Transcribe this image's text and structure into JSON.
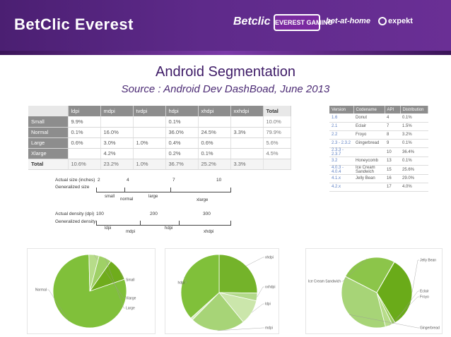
{
  "header": {
    "brand": "BetClic Everest",
    "logos": [
      "Betclic",
      "EVEREST GAMING",
      "bet-at-home",
      "expekt"
    ]
  },
  "title": "Android Segmentation",
  "subtitle": "Source : Android Dev DashBoad, June 2013",
  "density_table": {
    "columns": [
      "ldpi",
      "mdpi",
      "tvdpi",
      "hdpi",
      "xhdpi",
      "xxhdpi",
      "Total"
    ],
    "rows": [
      {
        "label": "Small",
        "cells": [
          "9.9%",
          "",
          "",
          "0.1%",
          "",
          "",
          "10.0%"
        ]
      },
      {
        "label": "Normal",
        "cells": [
          "0.1%",
          "16.0%",
          "",
          "36.0%",
          "24.5%",
          "3.3%",
          "79.9%"
        ]
      },
      {
        "label": "Large",
        "cells": [
          "0.6%",
          "3.0%",
          "1.0%",
          "0.4%",
          "0.6%",
          "",
          "5.6%"
        ]
      },
      {
        "label": "Xlarge",
        "cells": [
          "",
          "4.2%",
          "",
          "0.2%",
          "0.1%",
          "",
          "4.5%"
        ]
      }
    ],
    "total": {
      "label": "Total",
      "cells": [
        "10.6%",
        "23.2%",
        "1.0%",
        "36.7%",
        "25.2%",
        "3.3%",
        ""
      ]
    }
  },
  "version_table": {
    "columns": [
      "Version",
      "Codename",
      "API",
      "Distribution"
    ],
    "rows": [
      {
        "version": "1.6",
        "codename": "Donut",
        "api": "4",
        "dist": "0.1%"
      },
      {
        "version": "2.1",
        "codename": "Eclair",
        "api": "7",
        "dist": "1.5%"
      },
      {
        "version": "2.2",
        "codename": "Froyo",
        "api": "8",
        "dist": "3.2%"
      },
      {
        "version": "2.3 - 2.3.2",
        "codename": "Gingerbread",
        "api": "9",
        "dist": "0.1%"
      },
      {
        "version": "2.3.3 - 2.3.7",
        "codename": "",
        "api": "10",
        "dist": "36.4%"
      },
      {
        "version": "3.2",
        "codename": "Honeycomb",
        "api": "13",
        "dist": "0.1%"
      },
      {
        "version": "4.0.3 - 4.0.4",
        "codename": "Ice Cream Sandwich",
        "api": "15",
        "dist": "25.6%"
      },
      {
        "version": "4.1.x",
        "codename": "Jelly Bean",
        "api": "16",
        "dist": "29.0%"
      },
      {
        "version": "4.2.x",
        "codename": "",
        "api": "17",
        "dist": "4.0%"
      }
    ]
  },
  "size_diagram": {
    "actual_size_label": "Actual size (inches)",
    "size_ticks": [
      "2",
      "4",
      "7",
      "10"
    ],
    "generalized_size_label": "Generalized size",
    "size_groups": [
      "small",
      "normal",
      "large",
      "xlarge"
    ],
    "actual_density_label": "Actual density (dpi)",
    "density_ticks": [
      "100",
      "200",
      "300"
    ],
    "generalized_density_label": "Generalized density",
    "density_groups": [
      "ldpi",
      "mdpi",
      "hdpi",
      "xhdpi"
    ]
  },
  "chart_data": [
    {
      "type": "pie",
      "title": "",
      "labels": [
        "Small",
        "Normal",
        "Xlarge",
        "Large"
      ],
      "values": [
        10.0,
        79.9,
        4.5,
        5.6
      ],
      "colors": [
        "#6fac1c",
        "#80c03a",
        "#b7dc8a",
        "#9fd066"
      ]
    },
    {
      "type": "pie",
      "title": "",
      "labels": [
        "xhdpi",
        "xxhdpi",
        "ldpi",
        "mdpi",
        "tvdpi",
        "hdpi"
      ],
      "values": [
        25.2,
        3.3,
        10.6,
        23.2,
        1.0,
        36.7
      ],
      "colors": [
        "#74b32a",
        "#b2d98a",
        "#cbe6ab",
        "#a7d477",
        "#d8edc2",
        "#80c03a"
      ]
    },
    {
      "type": "pie",
      "title": "",
      "labels": [
        "Jelly Bean",
        "Eclair",
        "Froyo",
        "Gingerbread",
        "Honeycomb",
        "Ice Cream Sandwich",
        "Donut"
      ],
      "values": [
        33.0,
        1.5,
        3.2,
        36.5,
        0.1,
        25.6,
        0.1
      ],
      "colors": [
        "#6aab19",
        "#9ccd5e",
        "#b7dc8a",
        "#a7d477",
        "#d6ecbf",
        "#8cc54a",
        "#e3f2d3"
      ]
    }
  ]
}
